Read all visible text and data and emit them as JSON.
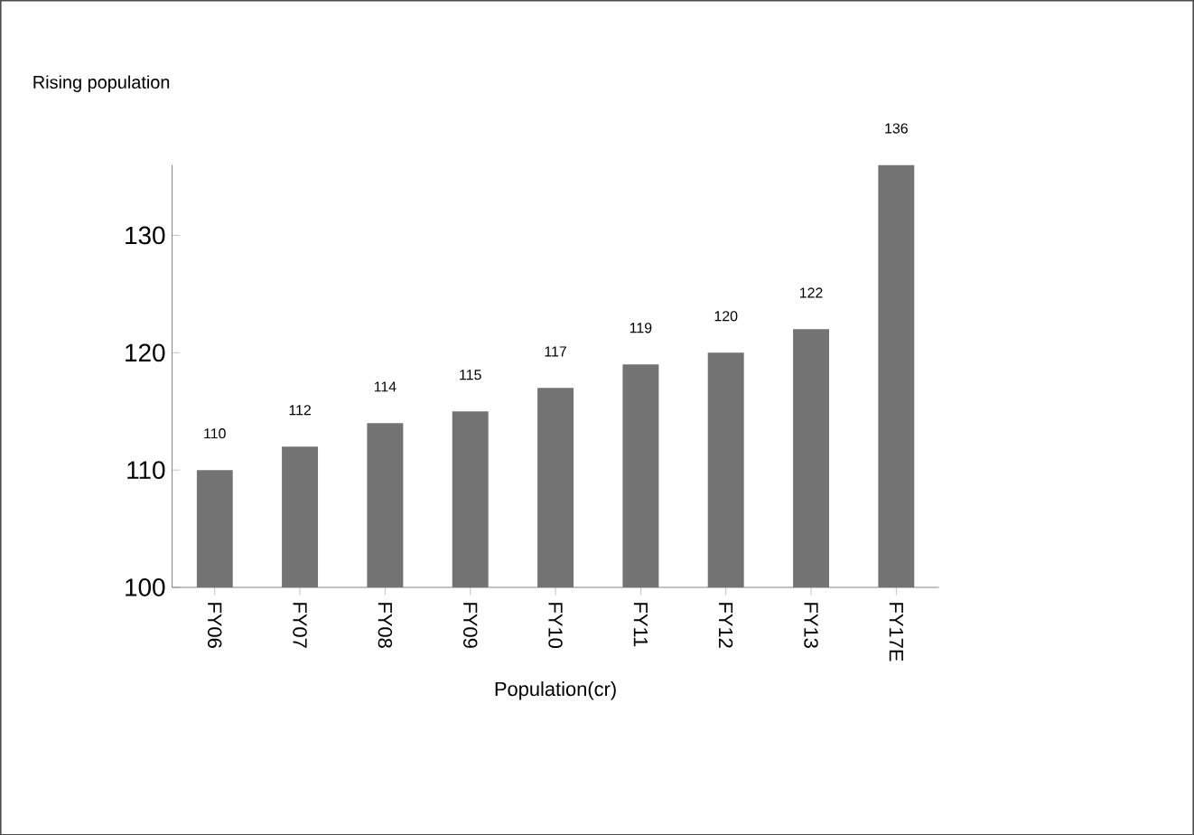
{
  "chart_data": {
    "type": "bar",
    "title": "Rising population",
    "xlabel": "Population(cr)",
    "categories": [
      "FY06",
      "FY07",
      "FY08",
      "FY09",
      "FY10",
      "FY11",
      "FY12",
      "FY13",
      "FY17E"
    ],
    "values": [
      110,
      112,
      114,
      115,
      117,
      119,
      120,
      122,
      136
    ],
    "color": "#737373",
    "ylim": [
      100,
      136
    ],
    "yticks": [
      100,
      110,
      120,
      130
    ],
    "data_labels": true,
    "grid": false
  }
}
